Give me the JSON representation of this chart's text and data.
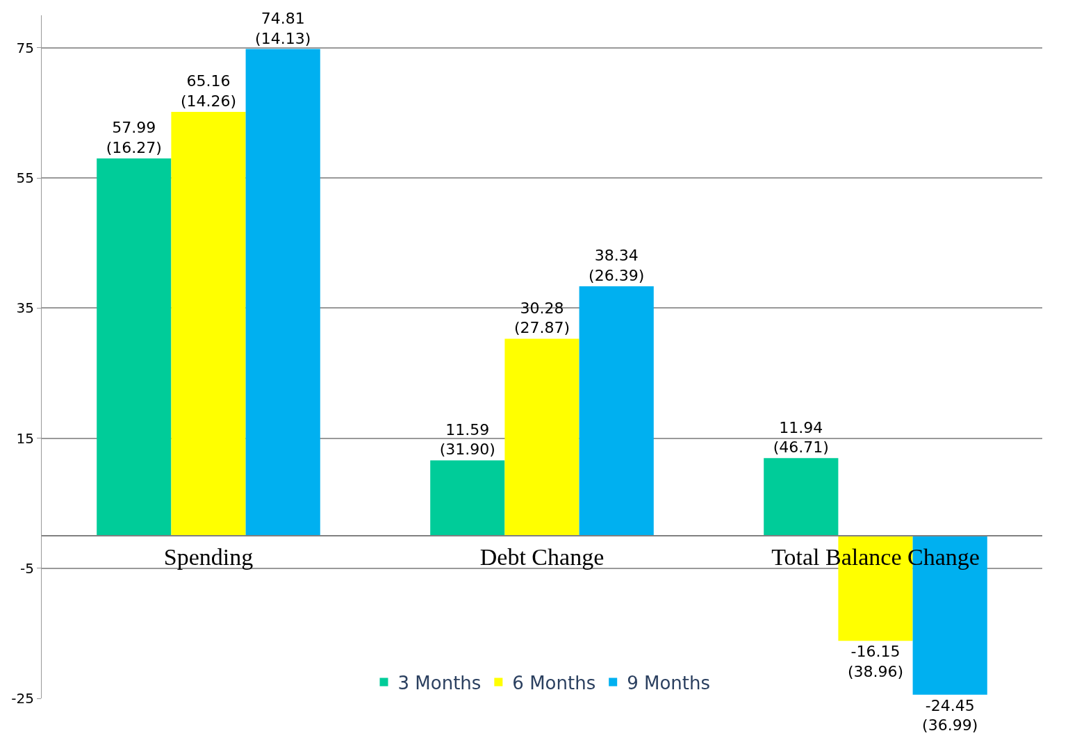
{
  "chart_data": {
    "type": "bar",
    "categories": [
      "Spending",
      "Debt Change",
      "Total Balance Change"
    ],
    "series": [
      {
        "name": "3 Months",
        "color": "#00cc99",
        "values": [
          57.99,
          11.59,
          11.94
        ],
        "value_labels": [
          "57.99\n(16.27)",
          "11.59\n(31.90)",
          "11.94\n(46.71)"
        ]
      },
      {
        "name": "6 Months",
        "color": "#ffff00",
        "values": [
          65.16,
          30.28,
          -16.15
        ],
        "value_labels": [
          "65.16\n(14.26)",
          "30.28\n(27.87)",
          "-16.15\n(38.96)"
        ]
      },
      {
        "name": "9 Months",
        "color": "#00b0f0",
        "values": [
          74.81,
          38.34,
          -24.45
        ],
        "value_labels": [
          "74.81\n(14.13)",
          "38.34\n(26.39)",
          "-24.45\n(36.99)"
        ]
      }
    ],
    "ylim": [
      -25,
      80
    ],
    "yticks": [
      -25,
      -5,
      15,
      35,
      55,
      75
    ],
    "grid": "y",
    "legend": "bottom"
  }
}
